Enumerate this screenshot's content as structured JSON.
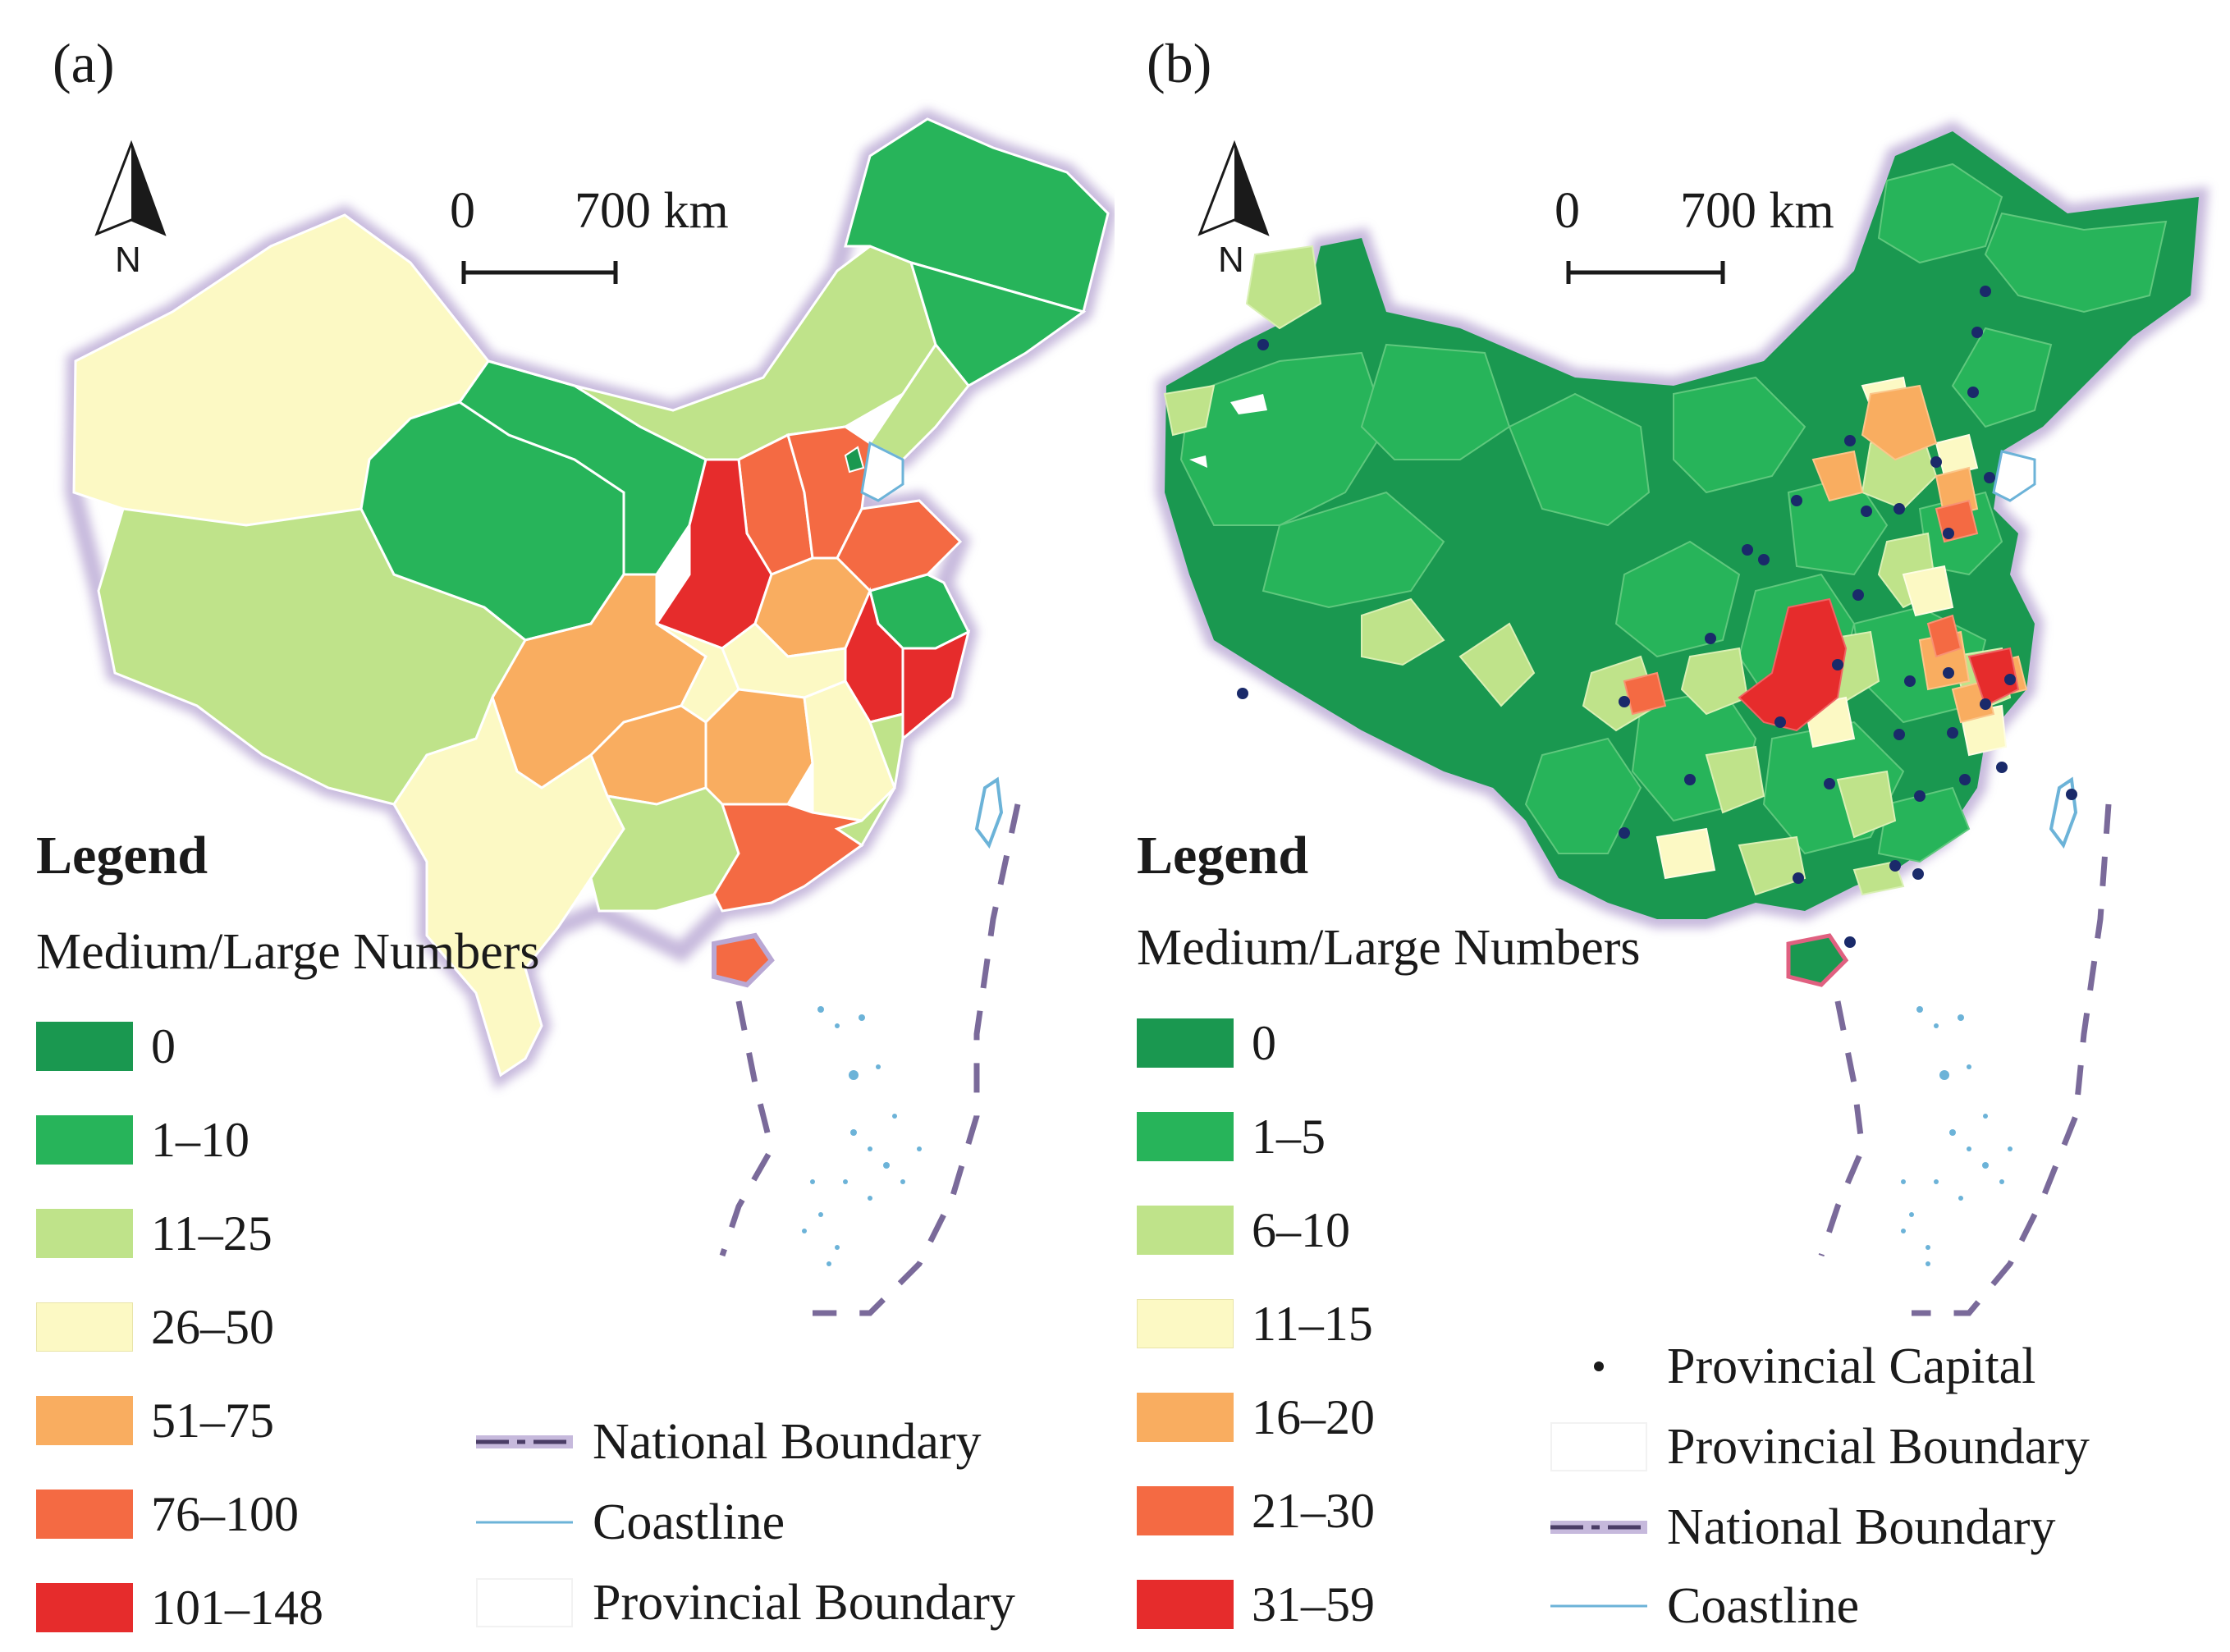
{
  "colors": {
    "c0": "#1a9850",
    "c1": "#27b45a",
    "c2": "#bfe38a",
    "c3": "#fcf9c4",
    "c4": "#f9ad60",
    "c5": "#f46a43",
    "c6": "#e62c2c",
    "water": "#6cb3d8",
    "boundary": "#b9a8d4"
  },
  "panels": [
    {
      "id": "a",
      "label": "(a)",
      "north": "N",
      "scale": {
        "zero": "0",
        "max": "700 km"
      },
      "legend": {
        "title": "Legend",
        "subtitle": "Medium/Large Numbers",
        "classes": [
          {
            "label": "0",
            "color": "#1a9850"
          },
          {
            "label": "1–10",
            "color": "#27b45a"
          },
          {
            "label": "11–25",
            "color": "#bfe38a"
          },
          {
            "label": "26–50",
            "color": "#fcf9c4"
          },
          {
            "label": "51–75",
            "color": "#f9ad60"
          },
          {
            "label": "76–100",
            "color": "#f46a43"
          },
          {
            "label": "101–148",
            "color": "#e62c2c"
          }
        ],
        "symbols": [
          {
            "label": "National Boundary",
            "icon": "national-boundary-icon"
          },
          {
            "label": "Coastline",
            "icon": "coastline-icon"
          },
          {
            "label": "Provincial Boundary",
            "icon": "provincial-boundary-icon"
          }
        ]
      }
    },
    {
      "id": "b",
      "label": "(b)",
      "north": "N",
      "scale": {
        "zero": "0",
        "max": "700 km"
      },
      "legend": {
        "title": "Legend",
        "subtitle": "Medium/Large Numbers",
        "classes": [
          {
            "label": "0",
            "color": "#1a9850"
          },
          {
            "label": "1–5",
            "color": "#27b45a"
          },
          {
            "label": "6–10",
            "color": "#bfe38a"
          },
          {
            "label": "11–15",
            "color": "#fcf9c4"
          },
          {
            "label": "16–20",
            "color": "#f9ad60"
          },
          {
            "label": "21–30",
            "color": "#f46a43"
          },
          {
            "label": "31–59",
            "color": "#e62c2c"
          }
        ],
        "symbols": [
          {
            "label": "Provincial Capital",
            "icon": "provincial-capital-icon"
          },
          {
            "label": "Provincial Boundary",
            "icon": "provincial-boundary-icon"
          },
          {
            "label": "National Boundary",
            "icon": "national-boundary-icon"
          },
          {
            "label": "Coastline",
            "icon": "coastline-icon"
          }
        ]
      }
    }
  ]
}
